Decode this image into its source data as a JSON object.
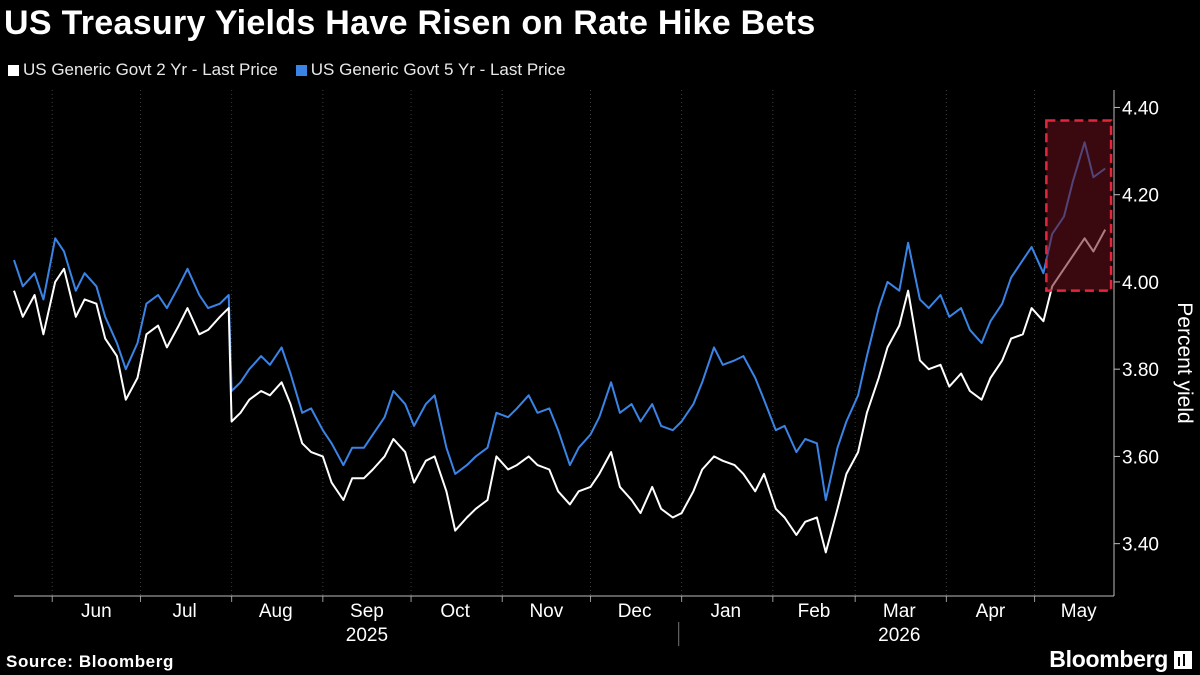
{
  "header": {
    "title": "US Treasury Yields Have Risen on Rate Hike Bets"
  },
  "legend": {
    "items": [
      {
        "label": "US Generic Govt 2 Yr - Last Price",
        "color": "#ffffff"
      },
      {
        "label": "US Generic Govt 5 Yr - Last Price",
        "color": "#3a84e6"
      }
    ]
  },
  "footer": {
    "source": "Source: Bloomberg",
    "brand": "Bloomberg"
  },
  "colors": {
    "background": "#000000",
    "grid": "#3c3c3c",
    "series_2yr": "#ffffff",
    "series_5yr": "#3a84e6",
    "highlight_fill": "#6a0f1c",
    "highlight_border": "#e3263c"
  },
  "chart_data": {
    "type": "line",
    "title": "US Treasury Yields Have Risen on Rate Hike Bets",
    "ylabel": "Percent yield",
    "xlabel": "",
    "ylim": [
      3.28,
      4.44
    ],
    "xlim": [
      "2025-05-19",
      "2026-05-28"
    ],
    "y_ticks": [
      3.4,
      3.6,
      3.8,
      4.0,
      4.2,
      4.4
    ],
    "y_tick_labels": [
      "3.40",
      "3.60",
      "3.80",
      "4.00",
      "4.20",
      "4.40"
    ],
    "y_axis_position": "right",
    "x_month_ticks": [
      {
        "label": "Jun",
        "date": "2025-06-16"
      },
      {
        "label": "Jul",
        "date": "2025-07-16"
      },
      {
        "label": "Aug",
        "date": "2025-08-16"
      },
      {
        "label": "Sep",
        "date": "2025-09-16"
      },
      {
        "label": "Oct",
        "date": "2025-10-16"
      },
      {
        "label": "Nov",
        "date": "2025-11-16"
      },
      {
        "label": "Dec",
        "date": "2025-12-16"
      },
      {
        "label": "Jan",
        "date": "2026-01-16"
      },
      {
        "label": "Feb",
        "date": "2026-02-15"
      },
      {
        "label": "Mar",
        "date": "2026-03-16"
      },
      {
        "label": "Apr",
        "date": "2026-04-16"
      },
      {
        "label": "May",
        "date": "2026-05-16"
      }
    ],
    "x_year_labels": [
      {
        "label": "2025",
        "date": "2025-09-16"
      },
      {
        "label": "2026",
        "date": "2026-03-16"
      }
    ],
    "grid": true,
    "grid_direction": "vertical",
    "legend_position": "top-left",
    "highlight_region": {
      "x_start": "2026-05-05",
      "x_end": "2026-05-27",
      "y_start": 3.98,
      "y_end": 4.37
    },
    "series": [
      {
        "name": "US Generic Govt 2 Yr - Last Price",
        "color": "#ffffff",
        "points": [
          [
            "2025-05-19",
            3.98
          ],
          [
            "2025-05-22",
            3.92
          ],
          [
            "2025-05-26",
            3.97
          ],
          [
            "2025-05-29",
            3.88
          ],
          [
            "2025-06-02",
            4.0
          ],
          [
            "2025-06-05",
            4.03
          ],
          [
            "2025-06-09",
            3.92
          ],
          [
            "2025-06-12",
            3.96
          ],
          [
            "2025-06-16",
            3.95
          ],
          [
            "2025-06-19",
            3.87
          ],
          [
            "2025-06-23",
            3.83
          ],
          [
            "2025-06-26",
            3.73
          ],
          [
            "2025-06-30",
            3.78
          ],
          [
            "2025-07-03",
            3.88
          ],
          [
            "2025-07-07",
            3.9
          ],
          [
            "2025-07-10",
            3.85
          ],
          [
            "2025-07-14",
            3.9
          ],
          [
            "2025-07-17",
            3.94
          ],
          [
            "2025-07-21",
            3.88
          ],
          [
            "2025-07-24",
            3.89
          ],
          [
            "2025-07-28",
            3.92
          ],
          [
            "2025-07-31",
            3.94
          ],
          [
            "2025-08-01",
            3.68
          ],
          [
            "2025-08-04",
            3.7
          ],
          [
            "2025-08-07",
            3.73
          ],
          [
            "2025-08-11",
            3.75
          ],
          [
            "2025-08-14",
            3.74
          ],
          [
            "2025-08-18",
            3.77
          ],
          [
            "2025-08-21",
            3.72
          ],
          [
            "2025-08-25",
            3.63
          ],
          [
            "2025-08-28",
            3.61
          ],
          [
            "2025-09-01",
            3.6
          ],
          [
            "2025-09-04",
            3.54
          ],
          [
            "2025-09-08",
            3.5
          ],
          [
            "2025-09-11",
            3.55
          ],
          [
            "2025-09-15",
            3.55
          ],
          [
            "2025-09-18",
            3.57
          ],
          [
            "2025-09-22",
            3.6
          ],
          [
            "2025-09-25",
            3.64
          ],
          [
            "2025-09-29",
            3.61
          ],
          [
            "2025-10-02",
            3.54
          ],
          [
            "2025-10-06",
            3.59
          ],
          [
            "2025-10-09",
            3.6
          ],
          [
            "2025-10-13",
            3.52
          ],
          [
            "2025-10-16",
            3.43
          ],
          [
            "2025-10-20",
            3.46
          ],
          [
            "2025-10-23",
            3.48
          ],
          [
            "2025-10-27",
            3.5
          ],
          [
            "2025-10-30",
            3.6
          ],
          [
            "2025-11-03",
            3.57
          ],
          [
            "2025-11-06",
            3.58
          ],
          [
            "2025-11-10",
            3.6
          ],
          [
            "2025-11-13",
            3.58
          ],
          [
            "2025-11-17",
            3.57
          ],
          [
            "2025-11-20",
            3.52
          ],
          [
            "2025-11-24",
            3.49
          ],
          [
            "2025-11-27",
            3.52
          ],
          [
            "2025-12-01",
            3.53
          ],
          [
            "2025-12-04",
            3.56
          ],
          [
            "2025-12-08",
            3.61
          ],
          [
            "2025-12-11",
            3.53
          ],
          [
            "2025-12-15",
            3.5
          ],
          [
            "2025-12-18",
            3.47
          ],
          [
            "2025-12-22",
            3.53
          ],
          [
            "2025-12-25",
            3.48
          ],
          [
            "2025-12-29",
            3.46
          ],
          [
            "2026-01-01",
            3.47
          ],
          [
            "2026-01-05",
            3.52
          ],
          [
            "2026-01-08",
            3.57
          ],
          [
            "2026-01-12",
            3.6
          ],
          [
            "2026-01-15",
            3.59
          ],
          [
            "2026-01-19",
            3.58
          ],
          [
            "2026-01-22",
            3.56
          ],
          [
            "2026-01-26",
            3.52
          ],
          [
            "2026-01-29",
            3.56
          ],
          [
            "2026-02-02",
            3.48
          ],
          [
            "2026-02-05",
            3.46
          ],
          [
            "2026-02-09",
            3.42
          ],
          [
            "2026-02-12",
            3.45
          ],
          [
            "2026-02-16",
            3.46
          ],
          [
            "2026-02-19",
            3.38
          ],
          [
            "2026-02-23",
            3.48
          ],
          [
            "2026-02-26",
            3.56
          ],
          [
            "2026-03-02",
            3.61
          ],
          [
            "2026-03-05",
            3.7
          ],
          [
            "2026-03-09",
            3.78
          ],
          [
            "2026-03-12",
            3.85
          ],
          [
            "2026-03-16",
            3.9
          ],
          [
            "2026-03-19",
            3.98
          ],
          [
            "2026-03-23",
            3.82
          ],
          [
            "2026-03-26",
            3.8
          ],
          [
            "2026-03-30",
            3.81
          ],
          [
            "2026-04-02",
            3.76
          ],
          [
            "2026-04-06",
            3.79
          ],
          [
            "2026-04-09",
            3.75
          ],
          [
            "2026-04-13",
            3.73
          ],
          [
            "2026-04-16",
            3.78
          ],
          [
            "2026-04-20",
            3.82
          ],
          [
            "2026-04-23",
            3.87
          ],
          [
            "2026-04-27",
            3.88
          ],
          [
            "2026-04-30",
            3.94
          ],
          [
            "2026-05-04",
            3.91
          ],
          [
            "2026-05-07",
            3.99
          ],
          [
            "2026-05-11",
            4.03
          ],
          [
            "2026-05-14",
            4.06
          ],
          [
            "2026-05-18",
            4.1
          ],
          [
            "2026-05-21",
            4.07
          ],
          [
            "2026-05-25",
            4.12
          ]
        ]
      },
      {
        "name": "US Generic Govt 5 Yr - Last Price",
        "color": "#3a84e6",
        "points": [
          [
            "2025-05-19",
            4.05
          ],
          [
            "2025-05-22",
            3.99
          ],
          [
            "2025-05-26",
            4.02
          ],
          [
            "2025-05-29",
            3.96
          ],
          [
            "2025-06-02",
            4.1
          ],
          [
            "2025-06-05",
            4.07
          ],
          [
            "2025-06-09",
            3.98
          ],
          [
            "2025-06-12",
            4.02
          ],
          [
            "2025-06-16",
            3.99
          ],
          [
            "2025-06-19",
            3.92
          ],
          [
            "2025-06-23",
            3.86
          ],
          [
            "2025-06-26",
            3.8
          ],
          [
            "2025-06-30",
            3.86
          ],
          [
            "2025-07-03",
            3.95
          ],
          [
            "2025-07-07",
            3.97
          ],
          [
            "2025-07-10",
            3.94
          ],
          [
            "2025-07-14",
            3.99
          ],
          [
            "2025-07-17",
            4.03
          ],
          [
            "2025-07-21",
            3.97
          ],
          [
            "2025-07-24",
            3.94
          ],
          [
            "2025-07-28",
            3.95
          ],
          [
            "2025-07-31",
            3.97
          ],
          [
            "2025-08-01",
            3.75
          ],
          [
            "2025-08-04",
            3.77
          ],
          [
            "2025-08-07",
            3.8
          ],
          [
            "2025-08-11",
            3.83
          ],
          [
            "2025-08-14",
            3.81
          ],
          [
            "2025-08-18",
            3.85
          ],
          [
            "2025-08-21",
            3.79
          ],
          [
            "2025-08-25",
            3.7
          ],
          [
            "2025-08-28",
            3.71
          ],
          [
            "2025-09-01",
            3.66
          ],
          [
            "2025-09-04",
            3.63
          ],
          [
            "2025-09-08",
            3.58
          ],
          [
            "2025-09-11",
            3.62
          ],
          [
            "2025-09-15",
            3.62
          ],
          [
            "2025-09-18",
            3.65
          ],
          [
            "2025-09-22",
            3.69
          ],
          [
            "2025-09-25",
            3.75
          ],
          [
            "2025-09-29",
            3.72
          ],
          [
            "2025-10-02",
            3.67
          ],
          [
            "2025-10-06",
            3.72
          ],
          [
            "2025-10-09",
            3.74
          ],
          [
            "2025-10-13",
            3.62
          ],
          [
            "2025-10-16",
            3.56
          ],
          [
            "2025-10-20",
            3.58
          ],
          [
            "2025-10-23",
            3.6
          ],
          [
            "2025-10-27",
            3.62
          ],
          [
            "2025-10-30",
            3.7
          ],
          [
            "2025-11-03",
            3.69
          ],
          [
            "2025-11-06",
            3.71
          ],
          [
            "2025-11-10",
            3.74
          ],
          [
            "2025-11-13",
            3.7
          ],
          [
            "2025-11-17",
            3.71
          ],
          [
            "2025-11-20",
            3.66
          ],
          [
            "2025-11-24",
            3.58
          ],
          [
            "2025-11-27",
            3.62
          ],
          [
            "2025-12-01",
            3.65
          ],
          [
            "2025-12-04",
            3.69
          ],
          [
            "2025-12-08",
            3.77
          ],
          [
            "2025-12-11",
            3.7
          ],
          [
            "2025-12-15",
            3.72
          ],
          [
            "2025-12-18",
            3.68
          ],
          [
            "2025-12-22",
            3.72
          ],
          [
            "2025-12-25",
            3.67
          ],
          [
            "2025-12-29",
            3.66
          ],
          [
            "2026-01-01",
            3.68
          ],
          [
            "2026-01-05",
            3.72
          ],
          [
            "2026-01-08",
            3.77
          ],
          [
            "2026-01-12",
            3.85
          ],
          [
            "2026-01-15",
            3.81
          ],
          [
            "2026-01-19",
            3.82
          ],
          [
            "2026-01-22",
            3.83
          ],
          [
            "2026-01-26",
            3.78
          ],
          [
            "2026-01-29",
            3.73
          ],
          [
            "2026-02-02",
            3.66
          ],
          [
            "2026-02-05",
            3.67
          ],
          [
            "2026-02-09",
            3.61
          ],
          [
            "2026-02-12",
            3.64
          ],
          [
            "2026-02-16",
            3.63
          ],
          [
            "2026-02-19",
            3.5
          ],
          [
            "2026-02-23",
            3.62
          ],
          [
            "2026-02-26",
            3.68
          ],
          [
            "2026-03-02",
            3.74
          ],
          [
            "2026-03-05",
            3.83
          ],
          [
            "2026-03-09",
            3.94
          ],
          [
            "2026-03-12",
            4.0
          ],
          [
            "2026-03-16",
            3.98
          ],
          [
            "2026-03-19",
            4.09
          ],
          [
            "2026-03-23",
            3.96
          ],
          [
            "2026-03-26",
            3.94
          ],
          [
            "2026-03-30",
            3.97
          ],
          [
            "2026-04-02",
            3.92
          ],
          [
            "2026-04-06",
            3.94
          ],
          [
            "2026-04-09",
            3.89
          ],
          [
            "2026-04-13",
            3.86
          ],
          [
            "2026-04-16",
            3.91
          ],
          [
            "2026-04-20",
            3.95
          ],
          [
            "2026-04-23",
            4.01
          ],
          [
            "2026-04-27",
            4.05
          ],
          [
            "2026-04-30",
            4.08
          ],
          [
            "2026-05-04",
            4.02
          ],
          [
            "2026-05-07",
            4.11
          ],
          [
            "2026-05-11",
            4.15
          ],
          [
            "2026-05-14",
            4.23
          ],
          [
            "2026-05-18",
            4.32
          ],
          [
            "2026-05-21",
            4.24
          ],
          [
            "2026-05-25",
            4.26
          ]
        ]
      }
    ]
  }
}
